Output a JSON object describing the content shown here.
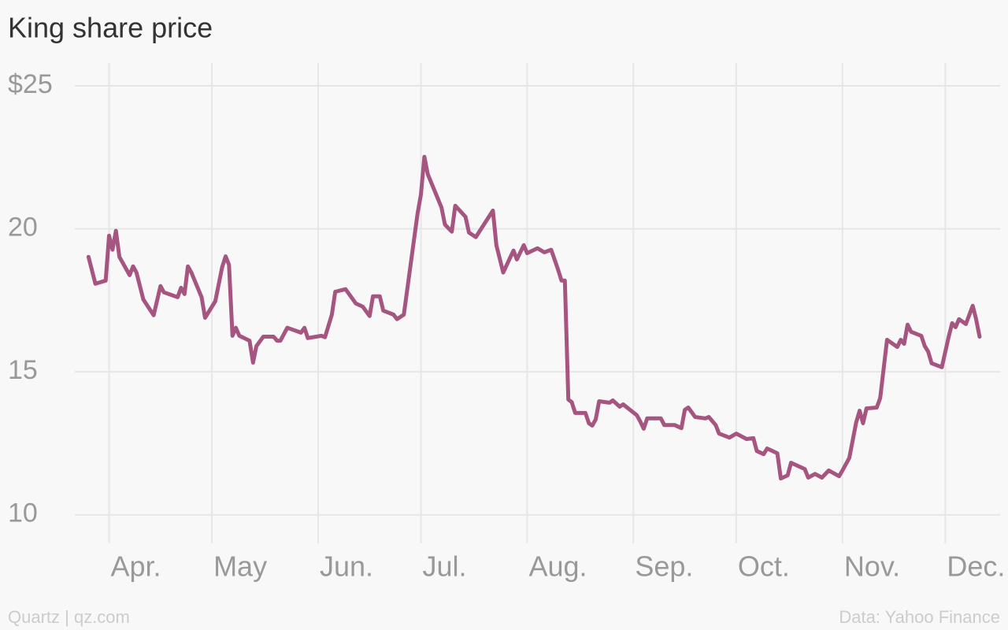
{
  "chart_data": {
    "type": "line",
    "title": "King share price",
    "source_left": "Quartz | qz.com",
    "source_right": "Data: Yahoo Finance",
    "color": "#a5557f",
    "grid": true,
    "xlim": [
      -10,
      260
    ],
    "ylim": [
      9,
      25.8
    ],
    "xticks": [
      {
        "value": 0,
        "label": "Apr."
      },
      {
        "value": 30,
        "label": "May"
      },
      {
        "value": 61,
        "label": "Jun."
      },
      {
        "value": 91,
        "label": "Jul."
      },
      {
        "value": 122,
        "label": "Aug."
      },
      {
        "value": 153,
        "label": "Sep."
      },
      {
        "value": 183,
        "label": "Oct."
      },
      {
        "value": 214,
        "label": "Nov."
      },
      {
        "value": 244,
        "label": "Dec."
      }
    ],
    "yticks": [
      10,
      15,
      20,
      {
        "value": 25,
        "label": "$25"
      }
    ],
    "x": [
      -6,
      -4,
      -1,
      0,
      1,
      2,
      3,
      6,
      7,
      8,
      10,
      13,
      15,
      16,
      20,
      21,
      22,
      23,
      24,
      27,
      28,
      31,
      33,
      34,
      35,
      36,
      37,
      38,
      41,
      42,
      43,
      45,
      48,
      49,
      50,
      52,
      56,
      57,
      58,
      62,
      63,
      65,
      66,
      69,
      72,
      74,
      76,
      77,
      79,
      80,
      83,
      84,
      86,
      90,
      91,
      92,
      93,
      97,
      98,
      100,
      101,
      104,
      105,
      107,
      112,
      113,
      115,
      118,
      119,
      121,
      122,
      125,
      127,
      129,
      131,
      132,
      133,
      134,
      135,
      136,
      139,
      140,
      141,
      142,
      143,
      146,
      147,
      149,
      150,
      154,
      155,
      156,
      157,
      161,
      162,
      165,
      167,
      168,
      169,
      171,
      174,
      175,
      177,
      178,
      181,
      183,
      186,
      188,
      189,
      191,
      192,
      195,
      196,
      198,
      199,
      203,
      204,
      206,
      208,
      210,
      213,
      214,
      216,
      218,
      219,
      220,
      221,
      224,
      225,
      227,
      230,
      231,
      232,
      233,
      234,
      237,
      238,
      239,
      240,
      243,
      245,
      246,
      247,
      248,
      250,
      252,
      253,
      254
    ],
    "values": [
      19.02,
      18.08,
      18.19,
      19.76,
      19.27,
      19.93,
      19.02,
      18.38,
      18.69,
      18.47,
      17.53,
      16.98,
      18.0,
      17.78,
      17.61,
      17.94,
      17.72,
      18.69,
      18.47,
      17.61,
      16.89,
      17.47,
      18.66,
      19.04,
      18.74,
      16.26,
      16.54,
      16.26,
      16.09,
      15.32,
      15.9,
      16.23,
      16.23,
      16.09,
      16.09,
      16.54,
      16.37,
      16.54,
      16.18,
      16.26,
      16.21,
      17.0,
      17.8,
      17.89,
      17.39,
      17.28,
      16.95,
      17.64,
      17.64,
      17.14,
      17.0,
      16.84,
      17.0,
      20.53,
      21.2,
      22.52,
      21.91,
      20.75,
      20.15,
      19.9,
      20.81,
      20.42,
      19.87,
      19.71,
      20.64,
      19.43,
      18.47,
      19.24,
      18.93,
      19.43,
      19.15,
      19.32,
      19.18,
      19.27,
      18.58,
      18.19,
      18.19,
      14.03,
      13.94,
      13.56,
      13.56,
      13.2,
      13.12,
      13.34,
      13.97,
      13.92,
      14.0,
      13.78,
      13.86,
      13.48,
      13.26,
      13.01,
      13.37,
      13.37,
      13.14,
      13.14,
      13.03,
      13.67,
      13.75,
      13.42,
      13.37,
      13.42,
      13.14,
      12.84,
      12.7,
      12.84,
      12.65,
      12.68,
      12.23,
      12.12,
      12.32,
      12.15,
      11.27,
      11.38,
      11.82,
      11.6,
      11.3,
      11.43,
      11.3,
      11.55,
      11.35,
      11.55,
      11.99,
      13.23,
      13.64,
      13.2,
      13.72,
      13.75,
      14.08,
      16.12,
      15.87,
      16.12,
      15.98,
      16.65,
      16.4,
      16.26,
      15.9,
      15.71,
      15.3,
      15.16,
      16.23,
      16.7,
      16.56,
      16.84,
      16.67,
      17.31,
      16.84,
      16.23
    ]
  }
}
